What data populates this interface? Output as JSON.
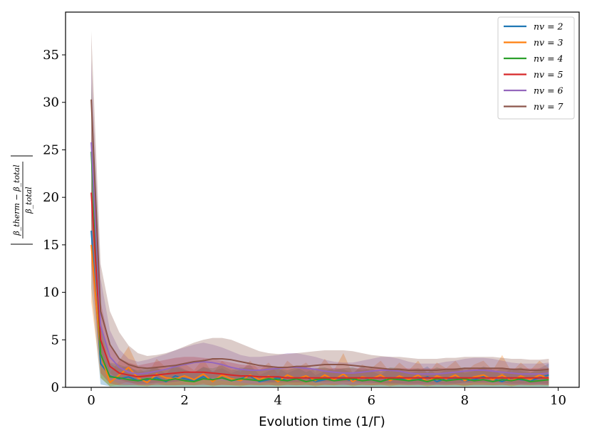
{
  "chart_data": {
    "type": "line",
    "title": "",
    "xlabel": "Evolution time (1/Γ)",
    "ylabel": "|(β_therm − β_total) / β_total|",
    "ylabel_num": "β_therm − β_total",
    "ylabel_den": "β_total",
    "xlim": [
      -0.55,
      10.45
    ],
    "ylim": [
      0,
      39.5
    ],
    "xticks": [
      0,
      2,
      4,
      6,
      8,
      10
    ],
    "yticks": [
      0,
      5,
      10,
      15,
      20,
      25,
      30,
      35
    ],
    "grid": false,
    "legend_position": "top-right",
    "x": [
      0,
      0.2,
      0.4,
      0.6,
      0.8,
      1.0,
      1.2,
      1.4,
      1.6,
      1.8,
      2.0,
      2.2,
      2.4,
      2.6,
      2.8,
      3.0,
      3.2,
      3.4,
      3.6,
      3.8,
      4.0,
      4.2,
      4.4,
      4.6,
      4.8,
      5.0,
      5.2,
      5.4,
      5.6,
      5.8,
      6.0,
      6.2,
      6.4,
      6.6,
      6.8,
      7.0,
      7.2,
      7.4,
      7.6,
      7.8,
      8.0,
      8.2,
      8.4,
      8.6,
      8.8,
      9.0,
      9.2,
      9.4,
      9.6,
      9.8
    ],
    "series": [
      {
        "name": "n_v = 2",
        "label": "nv = 2",
        "color": "#1f77b4",
        "values": [
          16.5,
          2.5,
          1.2,
          0.9,
          1.1,
          0.7,
          0.8,
          1.0,
          0.6,
          1.2,
          0.9,
          0.7,
          1.1,
          0.8,
          1.0,
          0.7,
          0.9,
          1.2,
          0.6,
          0.8,
          1.0,
          0.7,
          0.9,
          1.1,
          0.6,
          0.8,
          1.0,
          0.9,
          0.7,
          1.1,
          0.8,
          0.6,
          1.0,
          0.9,
          0.7,
          0.8,
          1.1,
          0.6,
          0.9,
          1.0,
          0.7,
          0.8,
          1.1,
          0.9,
          0.6,
          1.0,
          0.8,
          0.7,
          1.0,
          1.3
        ],
        "lower": [
          10.5,
          0.3,
          0.1,
          0.1,
          0.1,
          0.1,
          0.1,
          0.1,
          0.1,
          0.1,
          0.1,
          0.1,
          0.1,
          0.1,
          0.1,
          0.1,
          0.1,
          0.1,
          0.1,
          0.1,
          0.1,
          0.1,
          0.1,
          0.1,
          0.1,
          0.1,
          0.1,
          0.1,
          0.1,
          0.1,
          0.1,
          0.1,
          0.1,
          0.1,
          0.1,
          0.1,
          0.1,
          0.1,
          0.1,
          0.1,
          0.1,
          0.1,
          0.1,
          0.1,
          0.1,
          0.1,
          0.1,
          0.1,
          0.1,
          0.1
        ],
        "upper": [
          22.5,
          5.0,
          2.5,
          2.0,
          2.3,
          1.6,
          1.8,
          2.1,
          1.4,
          2.4,
          1.9,
          1.5,
          2.2,
          1.7,
          2.0,
          1.5,
          1.9,
          2.4,
          1.3,
          1.7,
          2.0,
          1.5,
          1.9,
          2.2,
          1.3,
          1.7,
          2.0,
          1.9,
          1.5,
          2.2,
          1.7,
          1.3,
          2.0,
          1.9,
          1.5,
          1.7,
          2.2,
          1.3,
          1.9,
          2.0,
          1.5,
          1.7,
          2.2,
          1.9,
          1.3,
          2.0,
          1.7,
          1.5,
          2.0,
          2.5
        ]
      },
      {
        "name": "n_v = 3",
        "label": "nv = 3",
        "color": "#ff7f0e",
        "values": [
          15.0,
          3.5,
          0.5,
          1.3,
          2.1,
          1.0,
          0.5,
          1.4,
          1.0,
          0.9,
          1.2,
          0.8,
          1.4,
          0.6,
          1.3,
          0.9,
          0.7,
          1.3,
          0.8,
          1.2,
          0.6,
          1.3,
          0.9,
          1.2,
          0.7,
          1.3,
          0.8,
          1.4,
          0.6,
          1.1,
          0.9,
          1.3,
          0.7,
          1.2,
          0.8,
          1.3,
          0.6,
          1.2,
          0.9,
          1.3,
          0.7,
          1.1,
          1.3,
          0.8,
          1.3,
          0.7,
          1.2,
          0.8,
          1.3,
          0.9
        ],
        "lower": [
          9.0,
          1.0,
          0.1,
          0.3,
          0.6,
          0.2,
          0.1,
          0.4,
          0.2,
          0.2,
          0.3,
          0.2,
          0.4,
          0.1,
          0.3,
          0.2,
          0.1,
          0.3,
          0.2,
          0.3,
          0.1,
          0.3,
          0.2,
          0.3,
          0.1,
          0.3,
          0.2,
          0.4,
          0.1,
          0.3,
          0.2,
          0.3,
          0.1,
          0.3,
          0.2,
          0.3,
          0.1,
          0.3,
          0.2,
          0.3,
          0.1,
          0.3,
          0.3,
          0.2,
          0.3,
          0.1,
          0.3,
          0.2,
          0.3,
          0.2
        ],
        "upper": [
          22.0,
          6.5,
          1.5,
          2.8,
          4.3,
          2.2,
          1.3,
          3.0,
          2.1,
          2.0,
          2.5,
          1.8,
          3.0,
          1.4,
          2.8,
          2.0,
          1.6,
          2.8,
          1.8,
          2.6,
          1.4,
          2.8,
          2.0,
          2.6,
          1.6,
          3.0,
          1.8,
          3.6,
          1.4,
          2.4,
          2.0,
          2.8,
          1.6,
          2.6,
          1.8,
          2.8,
          1.4,
          2.6,
          2.0,
          2.8,
          1.6,
          2.4,
          2.8,
          1.8,
          3.4,
          1.6,
          2.6,
          1.8,
          2.8,
          2.0
        ]
      },
      {
        "name": "n_v = 4",
        "label": "nv = 4",
        "color": "#2ca02c",
        "values": [
          24.8,
          3.5,
          1.1,
          1.0,
          0.8,
          0.7,
          0.9,
          0.8,
          0.7,
          0.9,
          0.7,
          0.6,
          0.9,
          0.8,
          1.0,
          0.7,
          0.9,
          0.8,
          0.7,
          0.9,
          0.8,
          0.7,
          0.9,
          0.6,
          0.8,
          0.9,
          0.7,
          0.8,
          0.9,
          0.7,
          0.8,
          0.6,
          0.9,
          0.8,
          0.7,
          0.8,
          0.6,
          0.9,
          0.7,
          0.8,
          0.9,
          0.7,
          0.8,
          0.6,
          0.8,
          0.7,
          0.9,
          0.6,
          0.7,
          0.8
        ],
        "lower": [
          17.5,
          1.0,
          0.1,
          0.1,
          0.1,
          0.1,
          0.1,
          0.1,
          0.1,
          0.1,
          0.1,
          0.1,
          0.1,
          0.1,
          0.1,
          0.1,
          0.1,
          0.1,
          0.1,
          0.1,
          0.1,
          0.1,
          0.1,
          0.1,
          0.1,
          0.1,
          0.1,
          0.1,
          0.1,
          0.1,
          0.1,
          0.1,
          0.1,
          0.1,
          0.1,
          0.1,
          0.1,
          0.1,
          0.1,
          0.1,
          0.1,
          0.1,
          0.1,
          0.1,
          0.1,
          0.1,
          0.1,
          0.1,
          0.1,
          0.1
        ],
        "upper": [
          32.0,
          7.0,
          2.6,
          2.4,
          2.0,
          1.8,
          2.1,
          2.0,
          1.8,
          2.2,
          1.8,
          1.6,
          2.1,
          2.0,
          2.3,
          1.8,
          2.1,
          2.0,
          1.8,
          2.1,
          2.0,
          1.8,
          2.1,
          1.6,
          2.0,
          2.1,
          1.8,
          2.0,
          2.1,
          1.8,
          2.0,
          1.6,
          2.1,
          2.0,
          1.8,
          2.0,
          1.6,
          2.1,
          1.8,
          2.0,
          2.1,
          1.8,
          2.0,
          1.6,
          2.0,
          1.8,
          2.1,
          1.6,
          1.8,
          2.0
        ]
      },
      {
        "name": "n_v = 5",
        "label": "nv = 5",
        "color": "#d62728",
        "values": [
          20.5,
          5.0,
          2.2,
          1.5,
          1.3,
          1.1,
          1.2,
          1.3,
          1.4,
          1.5,
          1.6,
          1.6,
          1.6,
          1.5,
          1.4,
          1.3,
          1.2,
          1.2,
          1.1,
          1.1,
          1.1,
          1.0,
          1.0,
          1.0,
          1.0,
          1.0,
          1.0,
          1.0,
          1.0,
          1.0,
          1.0,
          1.0,
          1.0,
          1.0,
          1.0,
          1.0,
          1.0,
          1.0,
          1.0,
          1.0,
          1.0,
          1.0,
          1.0,
          1.0,
          1.0,
          1.0,
          1.0,
          1.0,
          1.0,
          1.0
        ],
        "lower": [
          13.0,
          1.5,
          0.4,
          0.2,
          0.2,
          0.2,
          0.2,
          0.2,
          0.2,
          0.2,
          0.2,
          0.2,
          0.2,
          0.2,
          0.2,
          0.2,
          0.2,
          0.2,
          0.2,
          0.2,
          0.2,
          0.2,
          0.2,
          0.2,
          0.2,
          0.2,
          0.2,
          0.2,
          0.2,
          0.2,
          0.2,
          0.2,
          0.2,
          0.2,
          0.2,
          0.2,
          0.2,
          0.2,
          0.2,
          0.2,
          0.2,
          0.2,
          0.2,
          0.2,
          0.2,
          0.2,
          0.2,
          0.2,
          0.2,
          0.2
        ],
        "upper": [
          28.0,
          9.0,
          4.5,
          3.0,
          2.6,
          2.3,
          2.5,
          2.7,
          2.9,
          3.1,
          3.2,
          3.2,
          3.1,
          3.0,
          2.8,
          2.6,
          2.4,
          2.3,
          2.2,
          2.2,
          2.1,
          2.0,
          2.0,
          2.0,
          2.0,
          2.0,
          2.0,
          2.0,
          2.0,
          2.0,
          2.0,
          2.0,
          2.0,
          2.0,
          2.0,
          2.0,
          2.0,
          2.0,
          2.0,
          2.0,
          2.0,
          2.0,
          2.0,
          2.0,
          2.0,
          2.0,
          2.0,
          2.0,
          2.0,
          2.0
        ]
      },
      {
        "name": "n_v = 6",
        "label": "nv = 6",
        "color": "#9467bd",
        "values": [
          25.8,
          6.5,
          3.2,
          2.1,
          1.6,
          1.4,
          1.5,
          1.7,
          1.9,
          2.2,
          2.4,
          2.6,
          2.7,
          2.6,
          2.4,
          2.1,
          1.9,
          1.8,
          1.8,
          1.9,
          2.0,
          2.1,
          2.1,
          2.0,
          1.9,
          1.7,
          1.6,
          1.5,
          1.5,
          1.6,
          1.7,
          1.8,
          1.8,
          1.7,
          1.5,
          1.4,
          1.4,
          1.4,
          1.5,
          1.6,
          1.7,
          1.8,
          1.8,
          1.7,
          1.6,
          1.5,
          1.4,
          1.4,
          1.4,
          1.5
        ],
        "lower": [
          18.0,
          2.5,
          0.8,
          0.4,
          0.3,
          0.3,
          0.3,
          0.4,
          0.5,
          0.6,
          0.7,
          0.8,
          0.9,
          0.8,
          0.7,
          0.6,
          0.5,
          0.4,
          0.4,
          0.5,
          0.6,
          0.6,
          0.6,
          0.6,
          0.5,
          0.4,
          0.4,
          0.3,
          0.3,
          0.4,
          0.4,
          0.5,
          0.5,
          0.4,
          0.3,
          0.3,
          0.3,
          0.3,
          0.3,
          0.4,
          0.4,
          0.5,
          0.5,
          0.4,
          0.4,
          0.3,
          0.3,
          0.3,
          0.3,
          0.3
        ],
        "upper": [
          34.5,
          11.5,
          6.0,
          4.0,
          3.0,
          2.7,
          2.9,
          3.2,
          3.5,
          3.9,
          4.2,
          4.5,
          4.7,
          4.5,
          4.2,
          3.8,
          3.4,
          3.2,
          3.2,
          3.3,
          3.4,
          3.6,
          3.6,
          3.4,
          3.2,
          2.9,
          2.7,
          2.6,
          2.6,
          2.8,
          3.0,
          3.2,
          3.2,
          3.0,
          2.7,
          2.5,
          2.5,
          2.5,
          2.7,
          2.8,
          3.0,
          3.1,
          3.1,
          3.0,
          2.8,
          2.6,
          2.5,
          2.5,
          2.5,
          2.6
        ]
      },
      {
        "name": "n_v = 7",
        "label": "nv = 7",
        "color": "#8c564b",
        "values": [
          30.3,
          8.0,
          4.5,
          3.0,
          2.4,
          2.1,
          2.0,
          2.1,
          2.2,
          2.3,
          2.5,
          2.7,
          2.8,
          3.0,
          3.0,
          2.9,
          2.7,
          2.5,
          2.3,
          2.2,
          2.1,
          2.1,
          2.2,
          2.2,
          2.3,
          2.4,
          2.4,
          2.4,
          2.3,
          2.2,
          2.1,
          2.0,
          1.9,
          1.9,
          1.8,
          1.8,
          1.8,
          1.8,
          1.9,
          1.9,
          2.0,
          2.0,
          2.0,
          2.0,
          2.0,
          1.9,
          1.9,
          1.8,
          1.8,
          1.9
        ],
        "lower": [
          23.0,
          3.5,
          1.5,
          0.8,
          0.5,
          0.4,
          0.4,
          0.5,
          0.5,
          0.6,
          0.7,
          0.8,
          0.9,
          1.0,
          1.0,
          0.9,
          0.8,
          0.7,
          0.6,
          0.5,
          0.5,
          0.5,
          0.5,
          0.5,
          0.6,
          0.6,
          0.6,
          0.6,
          0.6,
          0.5,
          0.5,
          0.4,
          0.4,
          0.4,
          0.4,
          0.4,
          0.4,
          0.4,
          0.4,
          0.4,
          0.5,
          0.5,
          0.5,
          0.5,
          0.5,
          0.4,
          0.4,
          0.4,
          0.4,
          0.4
        ],
        "upper": [
          37.5,
          13.0,
          8.0,
          5.8,
          4.4,
          3.6,
          3.3,
          3.4,
          3.6,
          3.9,
          4.3,
          4.7,
          5.0,
          5.2,
          5.2,
          5.0,
          4.6,
          4.2,
          3.8,
          3.6,
          3.5,
          3.5,
          3.6,
          3.7,
          3.8,
          3.9,
          3.9,
          3.9,
          3.8,
          3.6,
          3.4,
          3.3,
          3.2,
          3.2,
          3.1,
          3.0,
          3.0,
          3.0,
          3.1,
          3.1,
          3.2,
          3.2,
          3.2,
          3.2,
          3.1,
          3.0,
          3.0,
          2.9,
          2.9,
          3.0
        ]
      }
    ]
  }
}
